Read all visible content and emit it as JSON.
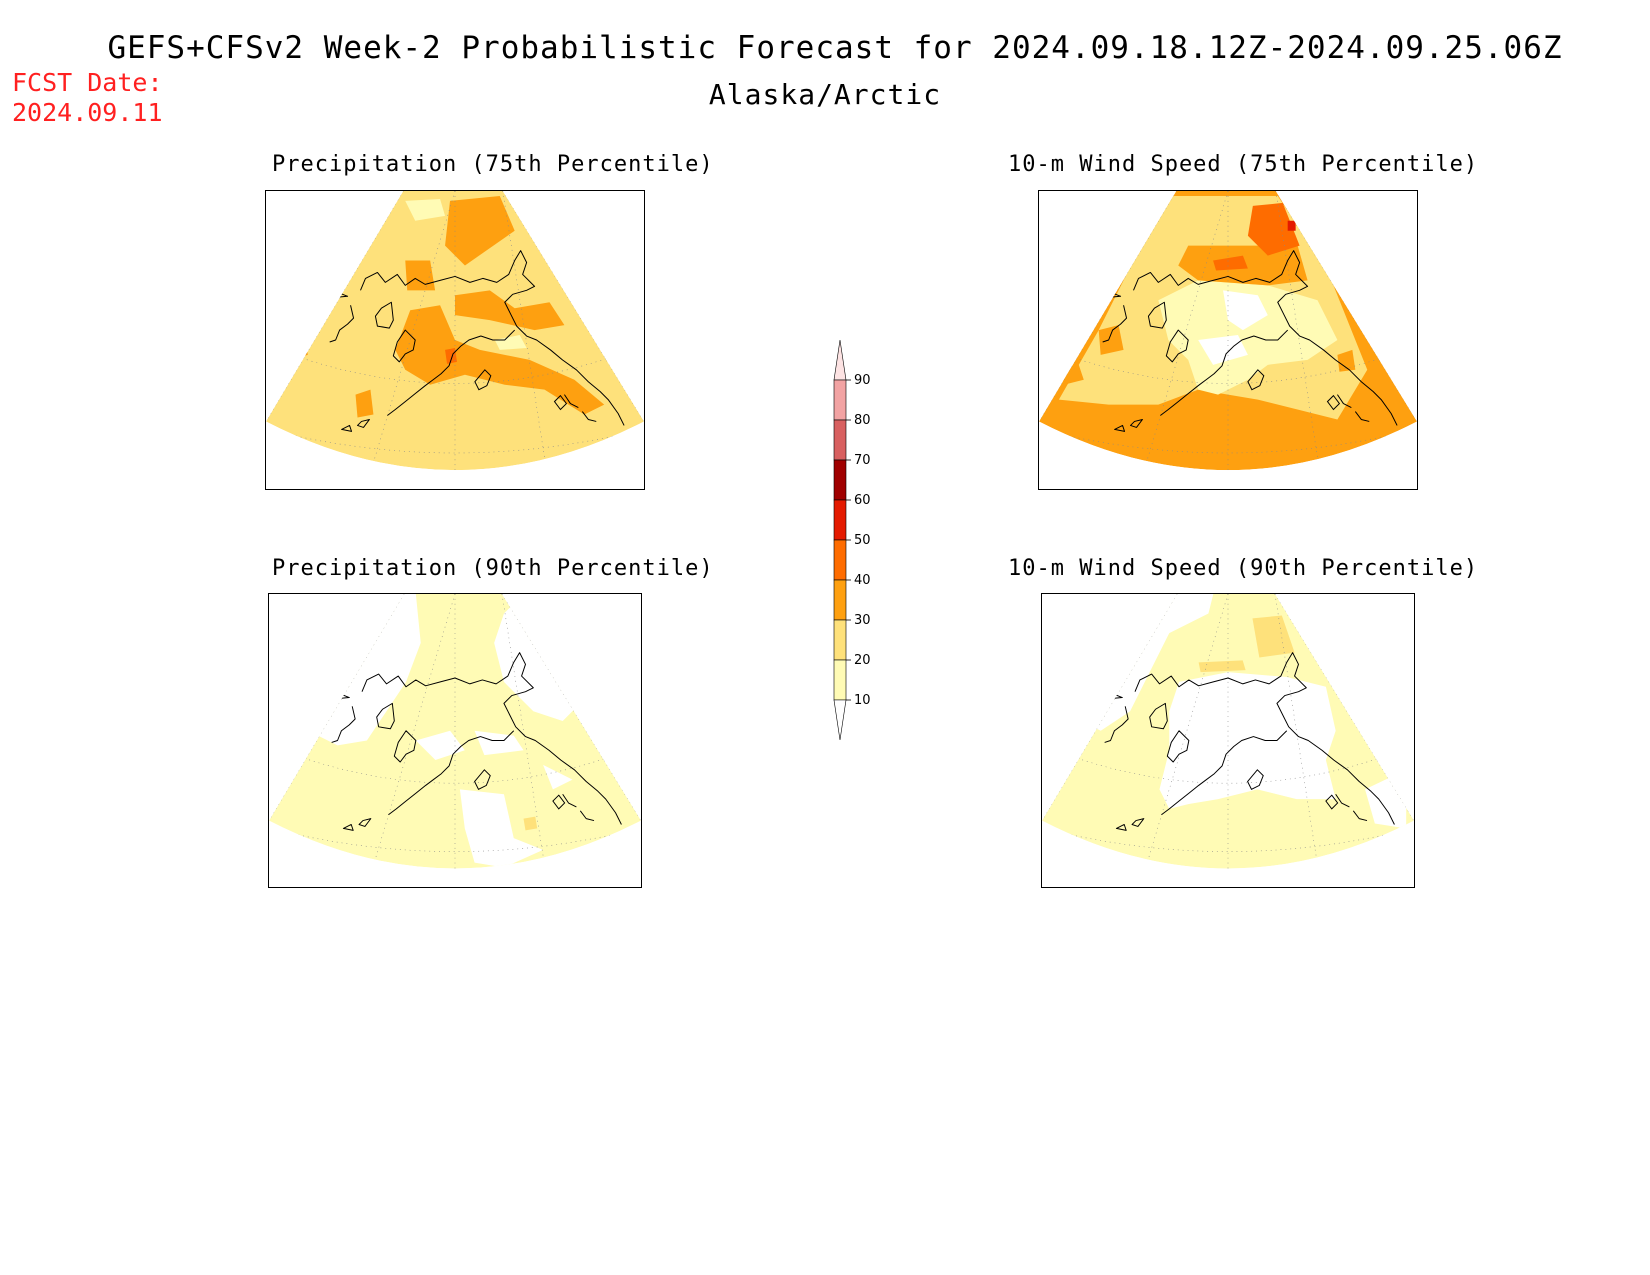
{
  "header": {
    "title": "GEFS+CFSv2 Week-2 Probabilistic Forecast for 2024.09.18.12Z-2024.09.25.06Z",
    "subtitle": "Alaska/Arctic",
    "fcst_date_label": "FCST Date:",
    "fcst_date_value": "2024.09.11"
  },
  "panels": [
    {
      "id": "precip75",
      "title": "Precipitation (75th Percentile)",
      "dominant_category": "20-30"
    },
    {
      "id": "wind75",
      "title": "10-m Wind Speed (75th Percentile)",
      "dominant_category": "30-40"
    },
    {
      "id": "precip90",
      "title": "Precipitation (90th Percentile)",
      "dominant_category": "10-20"
    },
    {
      "id": "wind90",
      "title": "10-m Wind Speed (90th Percentile)",
      "dominant_category": "10-20"
    }
  ],
  "colorbar": {
    "ticks": [
      "10",
      "20",
      "30",
      "40",
      "50",
      "60",
      "70",
      "80",
      "90"
    ],
    "colors": {
      "below10": "#ffffff",
      "10-20": "#fffbb5",
      "20-30": "#fee17b",
      "30-40": "#fea010",
      "40-50": "#fe6c00",
      "50-60": "#e41a00",
      "60-70": "#a00000",
      "70-80": "#d86060",
      "80-90": "#f2a3a3",
      "above90": "#fde3e3"
    }
  }
}
